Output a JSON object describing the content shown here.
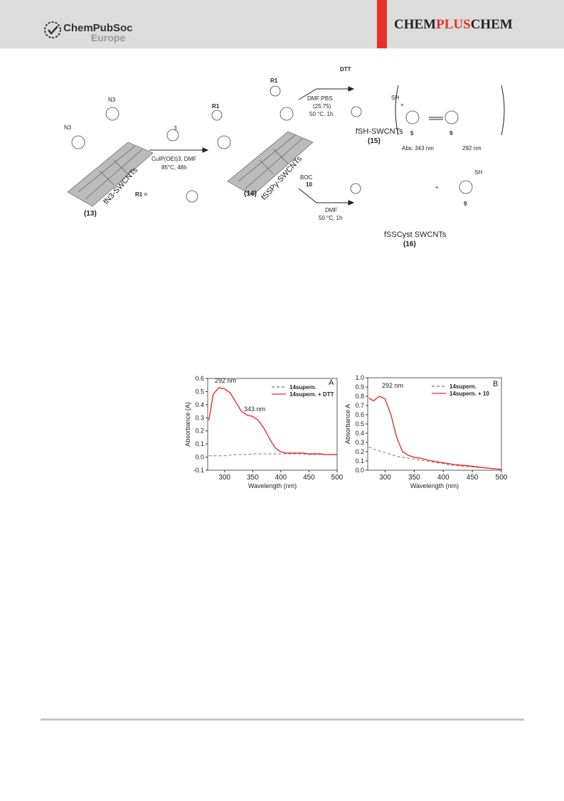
{
  "header": {
    "publisher": "ChemPubSoc",
    "publisher_sub": "Europe",
    "journal_a": "CHEM",
    "journal_b": "PLUS",
    "journal_c": "CHEM"
  },
  "scheme": {
    "n3_a": "N3",
    "n3_b": "N3",
    "start_name": "fN3-SWCNTs",
    "start_id": "(13)",
    "reagent_id": "3",
    "cond_1": "CuIP(OEt)3, DMF",
    "cond_2": "85°C, 48h",
    "r1_def": "R1 =",
    "r1_a": "R1",
    "r1_b": "R1",
    "mid_name": "fSSPy-SWCNTs",
    "mid_id": "(14)",
    "dtt": "DTT",
    "cond_3": "DMF:PBS",
    "cond_4": "(25:75)",
    "cond_5": "50 °C, 1h",
    "sh_name": "fSH-SWCNTs",
    "sh_id": "(15)",
    "sh_group": "SH",
    "plus_a": "+",
    "cmp_5": "5",
    "cmp_9a": "9",
    "abs_1": "Abs: 343 nm",
    "abs_2": "292 nm",
    "boc": "BOC",
    "cmp_10": "10",
    "cond_6": "DMF",
    "cond_7": "50 °C, 1h",
    "cyst_name": "fSSCyst SWCNTs",
    "cyst_id": "(16)",
    "plus_b": "+",
    "cmp_9b": "9",
    "sh_b": "SH"
  },
  "chart_data": [
    {
      "type": "line",
      "panel": "A",
      "x_label": "Wavelength (nm)",
      "y_label": "Absorbance (A)",
      "annotations": [
        "292 nm",
        "343 nm"
      ],
      "xlim": [
        270,
        500
      ],
      "xticks": [
        300,
        350,
        400,
        450,
        500
      ],
      "ylim": [
        -0.1,
        0.6
      ],
      "yticks": [
        -0.1,
        {
          "value": 0,
          "label": "0.0"
        },
        0.1,
        0.2,
        0.3,
        0.4,
        0.5,
        0.6
      ],
      "x": [
        272,
        280,
        290,
        300,
        310,
        320,
        330,
        340,
        350,
        360,
        370,
        380,
        390,
        400,
        410,
        420,
        430,
        440,
        450,
        460,
        470,
        480,
        490,
        500
      ],
      "series": [
        {
          "name": "14supern.",
          "color": "#777777",
          "dash": true,
          "values": [
            0.01,
            0.01,
            0.01,
            0.01,
            0.015,
            0.02,
            0.02,
            0.02,
            0.025,
            0.025,
            0.025,
            0.025,
            0.025,
            0.025,
            0.025,
            0.025,
            0.025,
            0.025,
            0.02,
            0.02,
            0.02,
            0.02,
            0.02,
            0.02
          ]
        },
        {
          "name": "14supern. + DTT",
          "color": "#e8302a",
          "dash": false,
          "values": [
            0.28,
            0.48,
            0.53,
            0.52,
            0.49,
            0.42,
            0.35,
            0.32,
            0.31,
            0.28,
            0.22,
            0.14,
            0.07,
            0.04,
            0.03,
            0.03,
            0.03,
            0.03,
            0.025,
            0.025,
            0.025,
            0.02,
            0.02,
            0.02
          ]
        }
      ]
    },
    {
      "type": "line",
      "panel": "B",
      "x_label": "Wavelength (nm)",
      "y_label": "Absorbance A",
      "annotations": [
        "292 nm"
      ],
      "xlim": [
        270,
        500
      ],
      "xticks": [
        300,
        350,
        400,
        450,
        500
      ],
      "ylim": [
        0,
        1.0
      ],
      "yticks": [
        {
          "value": 0,
          "label": "0.0"
        },
        0.1,
        0.2,
        0.3,
        0.4,
        0.5,
        0.6,
        0.7,
        0.8,
        0.9,
        {
          "value": 1,
          "label": "1.0"
        }
      ],
      "x": [
        272,
        280,
        290,
        300,
        310,
        320,
        330,
        340,
        350,
        360,
        380,
        400,
        420,
        440,
        460,
        480,
        500
      ],
      "series": [
        {
          "name": "14supern.",
          "color": "#777777",
          "dash": true,
          "values": [
            0.25,
            0.23,
            0.21,
            0.19,
            0.17,
            0.15,
            0.14,
            0.13,
            0.12,
            0.11,
            0.09,
            0.07,
            0.05,
            0.04,
            0.03,
            0.02,
            0.01
          ]
        },
        {
          "name": "14supern. + 10",
          "color": "#e8302a",
          "dash": false,
          "values": [
            0.78,
            0.75,
            0.8,
            0.77,
            0.6,
            0.35,
            0.2,
            0.16,
            0.14,
            0.13,
            0.1,
            0.08,
            0.06,
            0.05,
            0.035,
            0.02,
            0.01
          ]
        }
      ]
    }
  ]
}
